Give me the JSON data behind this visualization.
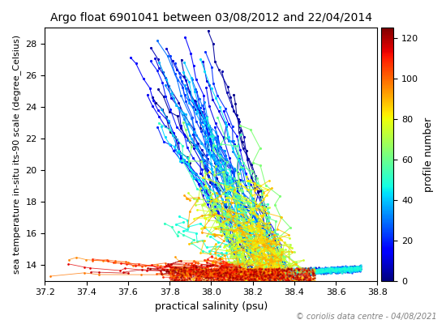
{
  "title": "Argo float 6901041 between 03/08/2012 and 22/04/2014",
  "xlabel": "practical salinity (psu)",
  "ylabel": "sea temperature in-situ its-90 scale (degree_Celsius)",
  "colorbar_label": "profile number",
  "copyright": "© coriolis data centre - 04/08/2021",
  "xlim": [
    37.2,
    38.8
  ],
  "ylim": [
    13.0,
    29.0
  ],
  "n_profiles": 125,
  "cmap": "jet",
  "colorbar_ticks": [
    0,
    20,
    40,
    60,
    80,
    100,
    120
  ],
  "seed": 7
}
